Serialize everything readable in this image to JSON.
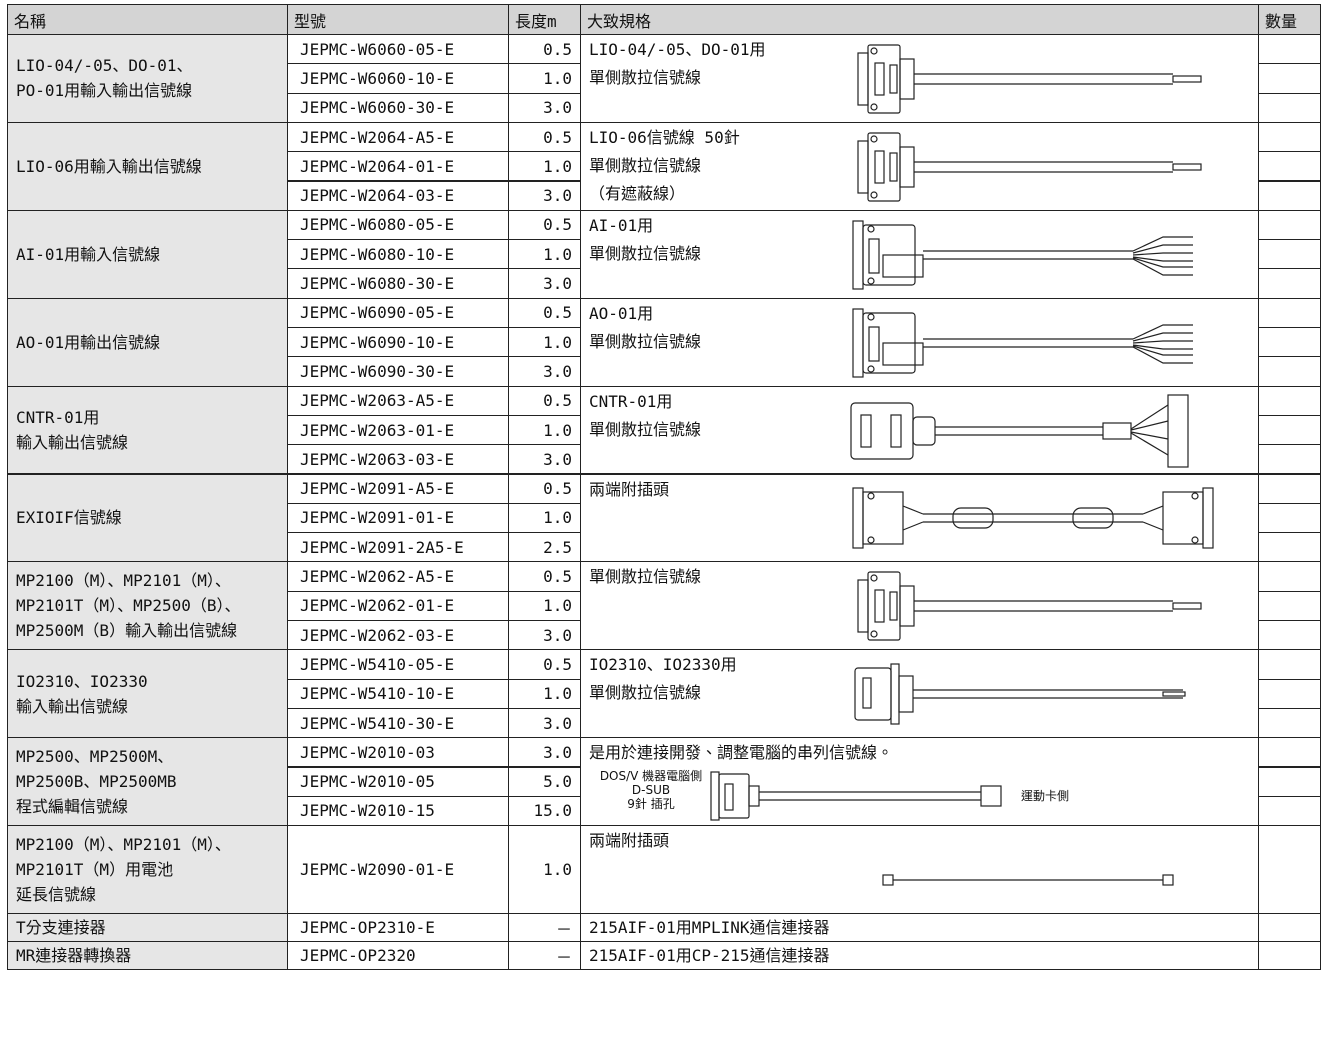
{
  "header": [
    "名稱",
    "型號",
    "長度m",
    "大致規格",
    "數量"
  ],
  "groups": [
    {
      "name": [
        "LIO-04/-05、DO-01、",
        "PO-01用輸入輸出信號線"
      ],
      "rows": [
        {
          "model": "JEPMC-W6060-05-E",
          "length": "0.5"
        },
        {
          "model": "JEPMC-W6060-10-E",
          "length": "1.0"
        },
        {
          "model": "JEPMC-W6060-30-E",
          "length": "3.0"
        }
      ],
      "spec": [
        "LIO-04/-05、DO-01用",
        "單側散拉信號線"
      ]
    },
    {
      "name": [
        "LIO-06用輸入輸出信號線"
      ],
      "rows": [
        {
          "model": "JEPMC-W2064-A5-E",
          "length": "0.5"
        },
        {
          "model": "JEPMC-W2064-01-E",
          "length": "1.0"
        },
        {
          "model": "JEPMC-W2064-03-E",
          "length": "3.0"
        }
      ],
      "spec": [
        "LIO-06信號線 50針",
        "單側散拉信號線",
        "（有遮蔽線）"
      ]
    },
    {
      "name": [
        "AI-01用輸入信號線"
      ],
      "rows": [
        {
          "model": "JEPMC-W6080-05-E",
          "length": "0.5"
        },
        {
          "model": "JEPMC-W6080-10-E",
          "length": "1.0"
        },
        {
          "model": "JEPMC-W6080-30-E",
          "length": "3.0"
        }
      ],
      "spec": [
        "AI-01用",
        "單側散拉信號線"
      ]
    },
    {
      "name": [
        "AO-01用輸出信號線"
      ],
      "rows": [
        {
          "model": "JEPMC-W6090-05-E",
          "length": "0.5"
        },
        {
          "model": "JEPMC-W6090-10-E",
          "length": "1.0"
        },
        {
          "model": "JEPMC-W6090-30-E",
          "length": "3.0"
        }
      ],
      "spec": [
        "AO-01用",
        "單側散拉信號線"
      ]
    },
    {
      "name": [
        "CNTR-01用",
        "輸入輸出信號線"
      ],
      "rows": [
        {
          "model": "JEPMC-W2063-A5-E",
          "length": "0.5"
        },
        {
          "model": "JEPMC-W2063-01-E",
          "length": "1.0"
        },
        {
          "model": "JEPMC-W2063-03-E",
          "length": "3.0"
        }
      ],
      "spec": [
        "CNTR-01用",
        "單側散拉信號線"
      ]
    },
    {
      "name": [
        "EXIOIF信號線"
      ],
      "rows": [
        {
          "model": "JEPMC-W2091-A5-E",
          "length": "0.5"
        },
        {
          "model": "JEPMC-W2091-01-E",
          "length": "1.0"
        },
        {
          "model": "JEPMC-W2091-2A5-E",
          "length": "2.5"
        }
      ],
      "spec": [
        "兩端附插頭"
      ]
    },
    {
      "name": [
        "MP2100（M）、MP2101（M）、",
        "MP2101T（M）、MP2500（B）、",
        "MP2500M（B）輸入輸出信號線"
      ],
      "rows": [
        {
          "model": "JEPMC-W2062-A5-E",
          "length": "0.5"
        },
        {
          "model": "JEPMC-W2062-01-E",
          "length": "1.0"
        },
        {
          "model": "JEPMC-W2062-03-E",
          "length": "3.0"
        }
      ],
      "spec": [
        "單側散拉信號線"
      ]
    },
    {
      "name": [
        "IO2310、IO2330",
        "輸入輸出信號線"
      ],
      "rows": [
        {
          "model": "JEPMC-W5410-05-E",
          "length": "0.5"
        },
        {
          "model": "JEPMC-W5410-10-E",
          "length": "1.0"
        },
        {
          "model": "JEPMC-W5410-30-E",
          "length": "3.0"
        }
      ],
      "spec": [
        "IO2310、IO2330用",
        "單側散拉信號線"
      ]
    },
    {
      "name": [
        "MP2500、MP2500M、",
        "MP2500B、MP2500MB",
        "程式編輯信號線"
      ],
      "rows": [
        {
          "model": "JEPMC-W2010-03",
          "length": "3.0"
        },
        {
          "model": "JEPMC-W2010-05",
          "length": "5.0"
        },
        {
          "model": "JEPMC-W2010-15",
          "length": "15.0"
        }
      ],
      "spec": [
        "是用於連接開發、調整電腦的串列信號線。"
      ],
      "diagram_labels": {
        "pc_side": [
          "DOS/V 機器電腦側",
          "D-SUB",
          "9針 插孔"
        ],
        "card_side": "運動卡側"
      }
    },
    {
      "name": [
        "MP2100（M）、MP2101（M）、",
        "MP2101T（M）用電池",
        "延長信號線"
      ],
      "rows": [
        {
          "model": "JEPMC-W2090-01-E",
          "length": "1.0"
        }
      ],
      "spec": [
        "兩端附插頭"
      ]
    },
    {
      "name": [
        "T分支連接器"
      ],
      "rows": [
        {
          "model": "JEPMC-OP2310-E",
          "length": "－"
        }
      ],
      "spec": [
        "215AIF-01用MPLINK通信連接器"
      ]
    },
    {
      "name": [
        "MR連接器轉換器"
      ],
      "rows": [
        {
          "model": "JEPMC-OP2320",
          "length": "－"
        }
      ],
      "spec": [
        "215AIF-01用CP-215通信連接器"
      ]
    }
  ]
}
